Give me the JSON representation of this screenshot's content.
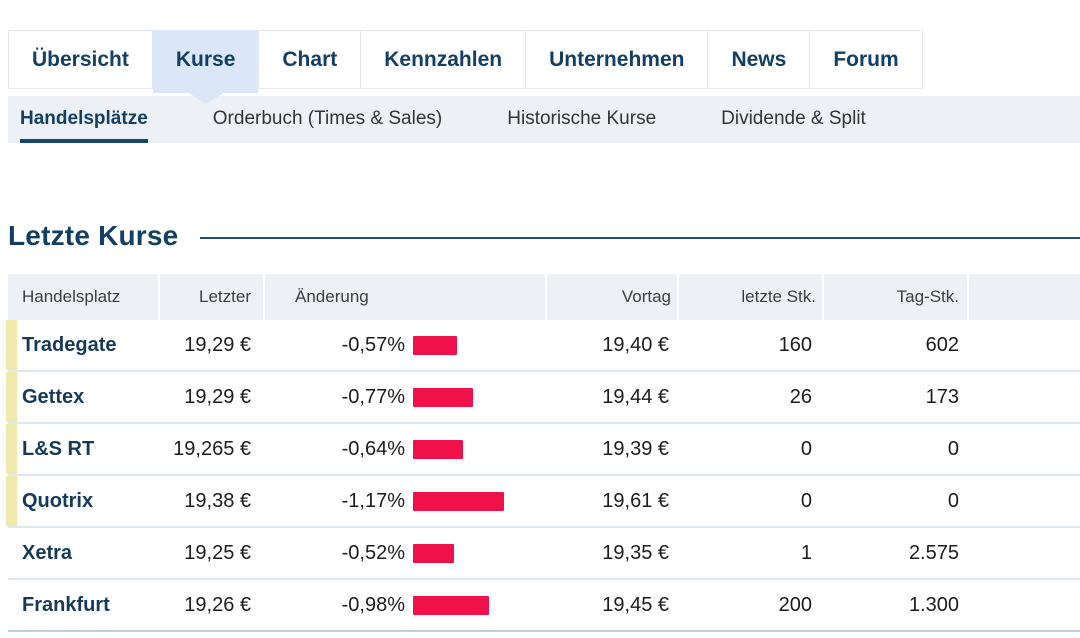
{
  "nav": {
    "tabs": [
      {
        "label": "Übersicht",
        "active": false
      },
      {
        "label": "Kurse",
        "active": true
      },
      {
        "label": "Chart",
        "active": false
      },
      {
        "label": "Kennzahlen",
        "active": false
      },
      {
        "label": "Unternehmen",
        "active": false
      },
      {
        "label": "News",
        "active": false
      },
      {
        "label": "Forum",
        "active": false
      }
    ],
    "subtabs": [
      {
        "label": "Handelsplätze",
        "active": true
      },
      {
        "label": "Orderbuch (Times & Sales)",
        "active": false
      },
      {
        "label": "Historische Kurse",
        "active": false
      },
      {
        "label": "Dividende & Split",
        "active": false
      }
    ]
  },
  "section": {
    "title": "Letzte Kurse"
  },
  "table": {
    "columns": [
      "Handelsplatz",
      "Letzter",
      "Änderung",
      "Vortag",
      "letzte Stk.",
      "Tag-Stk."
    ],
    "rows": [
      {
        "venue": "Tradegate",
        "last": "19,29 €",
        "change": "-0,57%",
        "change_pct": -0.57,
        "prev_close": "19,40 €",
        "last_qty": "160",
        "day_qty": "602",
        "realtime_indicator": true
      },
      {
        "venue": "Gettex",
        "last": "19,29 €",
        "change": "-0,77%",
        "change_pct": -0.77,
        "prev_close": "19,44 €",
        "last_qty": "26",
        "day_qty": "173",
        "realtime_indicator": true
      },
      {
        "venue": "L&S RT",
        "last": "19,265 €",
        "change": "-0,64%",
        "change_pct": -0.64,
        "prev_close": "19,39 €",
        "last_qty": "0",
        "day_qty": "0",
        "realtime_indicator": true
      },
      {
        "venue": "Quotrix",
        "last": "19,38 €",
        "change": "-1,17%",
        "change_pct": -1.17,
        "prev_close": "19,61 €",
        "last_qty": "0",
        "day_qty": "0",
        "realtime_indicator": true
      },
      {
        "venue": "Xetra",
        "last": "19,25 €",
        "change": "-0,52%",
        "change_pct": -0.52,
        "prev_close": "19,35 €",
        "last_qty": "1",
        "day_qty": "2.575",
        "realtime_indicator": false
      },
      {
        "venue": "Frankfurt",
        "last": "19,26 €",
        "change": "-0,98%",
        "change_pct": -0.98,
        "prev_close": "19,45 €",
        "last_qty": "200",
        "day_qty": "1.300",
        "realtime_indicator": false
      }
    ]
  },
  "colors": {
    "navy": "#123f63",
    "negative_red": "#f0114a",
    "active_tab_bg": "#dbe7f7",
    "indicator_yellow": "#efe9ae",
    "subnav_bg": "#edf1f6"
  }
}
